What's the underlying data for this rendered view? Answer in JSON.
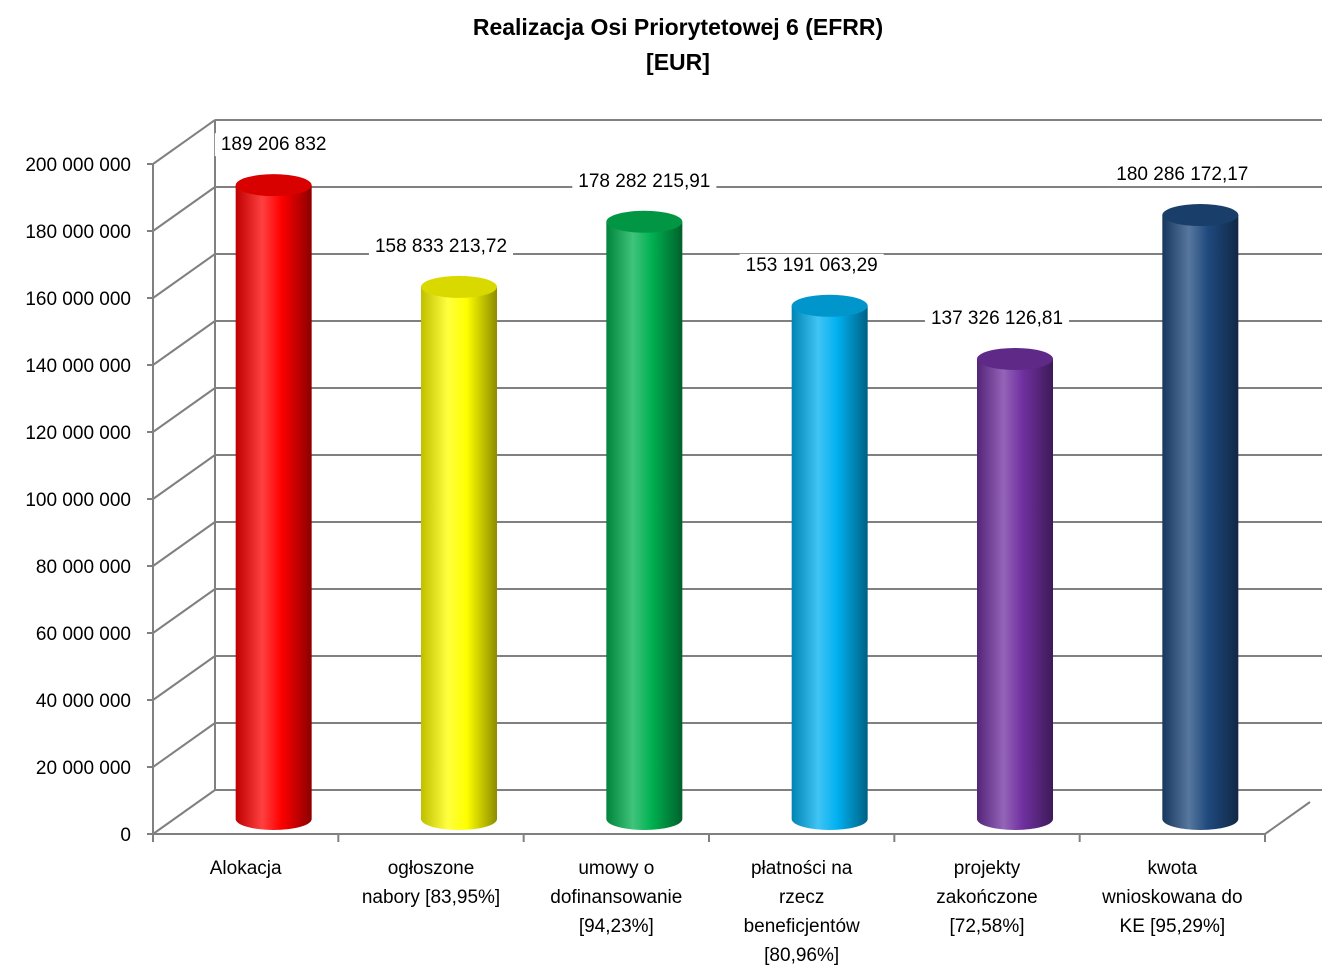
{
  "chart_data": {
    "type": "bar",
    "title": [
      "Realizacja Osi Priorytetowej 6  (EFRR)",
      "[EUR]"
    ],
    "categories": [
      [
        "Alokacja"
      ],
      [
        "ogłoszone",
        "nabory [83,95%]"
      ],
      [
        "umowy o",
        "dofinansowanie",
        "[94,23%]"
      ],
      [
        "płatności na",
        "rzecz",
        "beneficjentów",
        "[80,96%]"
      ],
      [
        "projekty",
        "zakończone",
        "[72,58%]"
      ],
      [
        "kwota",
        "wnioskowana do",
        "KE [95,29%]"
      ]
    ],
    "values": [
      189206832,
      158833213.72,
      178282215.91,
      153191063.29,
      137326126.81,
      180286172.17
    ],
    "data_labels": [
      "189 206 832",
      "158 833 213,72",
      "178 282 215,91",
      "153 191 063,29",
      "137 326 126,81",
      "180 286 172,17"
    ],
    "colors": [
      "#ff0000",
      "#ffff00",
      "#00b050",
      "#00b0f0",
      "#7030a0",
      "#1f497d"
    ],
    "ylim": [
      0,
      200000000
    ],
    "yticks": [
      "0",
      "20 000 000",
      "40 000 000",
      "60 000 000",
      "80 000 000",
      "100 000 000",
      "120 000 000",
      "140 000 000",
      "160 000 000",
      "180 000 000",
      "200 000 000"
    ],
    "grid": true,
    "style": "3d-cylinder"
  }
}
